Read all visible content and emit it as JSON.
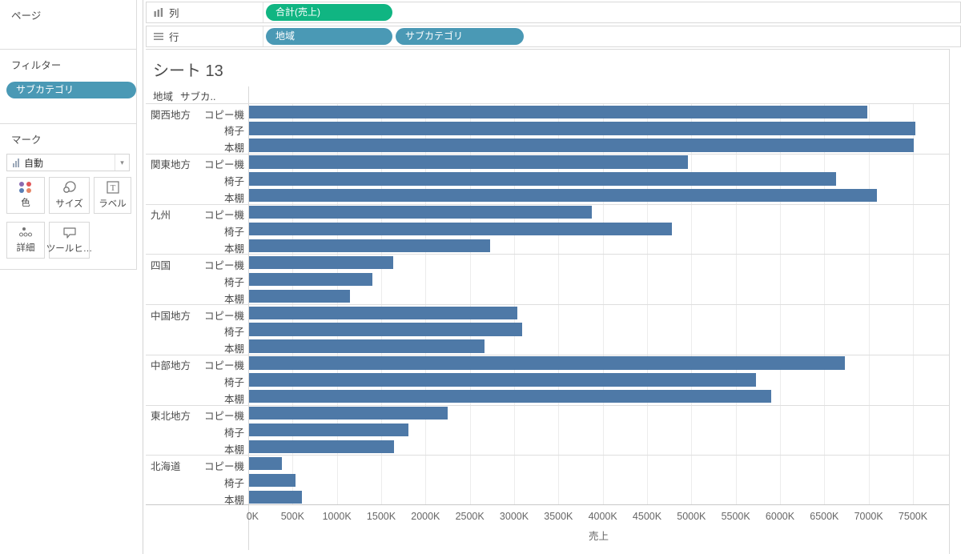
{
  "left_panel": {
    "pages_label": "ページ",
    "filters_label": "フィルター",
    "filter_pills": [
      {
        "label": "サブカテゴリ"
      }
    ],
    "marks": {
      "label": "マーク",
      "mark_type": "自動",
      "buttons": [
        {
          "label": "色"
        },
        {
          "label": "サイズ"
        },
        {
          "label": "ラベル"
        },
        {
          "label": "詳細"
        },
        {
          "label": "ツールヒ…"
        }
      ]
    }
  },
  "shelves": {
    "columns": {
      "label": "列",
      "pills": [
        {
          "label": "合計(売上)",
          "type": "measure"
        }
      ]
    },
    "rows": {
      "label": "行",
      "pills": [
        {
          "label": "地域",
          "type": "dimension"
        },
        {
          "label": "サブカテゴリ",
          "type": "dimension"
        }
      ]
    }
  },
  "sheet": {
    "title": "シート 13",
    "field_labels": {
      "region": "地域",
      "subcategory": "サブカ.."
    }
  },
  "chart_data": {
    "type": "bar",
    "orientation": "horizontal",
    "title": "シート 13",
    "xlabel": "売上",
    "x_unit": "K",
    "xlim_k": [
      0,
      7500
    ],
    "x_ticks": [
      "0K",
      "500K",
      "1000K",
      "1500K",
      "2000K",
      "2500K",
      "3000K",
      "3500K",
      "4000K",
      "4500K",
      "5000K",
      "5500K",
      "6000K",
      "6500K",
      "7000K",
      "7500K"
    ],
    "grid": true,
    "bar_color": "#4e79a7",
    "groups": [
      {
        "region": "関西地方",
        "rows": [
          {
            "label": "コピー機",
            "value_k": 6980
          },
          {
            "label": "椅子",
            "value_k": 7520
          },
          {
            "label": "本棚",
            "value_k": 7500
          }
        ]
      },
      {
        "region": "関東地方",
        "rows": [
          {
            "label": "コピー機",
            "value_k": 4950
          },
          {
            "label": "椅子",
            "value_k": 6620
          },
          {
            "label": "本棚",
            "value_k": 7080
          }
        ]
      },
      {
        "region": "九州",
        "rows": [
          {
            "label": "コピー機",
            "value_k": 3870
          },
          {
            "label": "椅子",
            "value_k": 4770
          },
          {
            "label": "本棚",
            "value_k": 2720
          }
        ]
      },
      {
        "region": "四国",
        "rows": [
          {
            "label": "コピー機",
            "value_k": 1630
          },
          {
            "label": "椅子",
            "value_k": 1390
          },
          {
            "label": "本棚",
            "value_k": 1140
          }
        ]
      },
      {
        "region": "中国地方",
        "rows": [
          {
            "label": "コピー機",
            "value_k": 3030
          },
          {
            "label": "椅子",
            "value_k": 3080
          },
          {
            "label": "本棚",
            "value_k": 2660
          }
        ]
      },
      {
        "region": "中部地方",
        "rows": [
          {
            "label": "コピー機",
            "value_k": 6720
          },
          {
            "label": "椅子",
            "value_k": 5720
          },
          {
            "label": "本棚",
            "value_k": 5890
          }
        ]
      },
      {
        "region": "東北地方",
        "rows": [
          {
            "label": "コピー機",
            "value_k": 2240
          },
          {
            "label": "椅子",
            "value_k": 1800
          },
          {
            "label": "本棚",
            "value_k": 1640
          }
        ]
      },
      {
        "region": "北海道",
        "rows": [
          {
            "label": "コピー機",
            "value_k": 370
          },
          {
            "label": "椅子",
            "value_k": 520
          },
          {
            "label": "本棚",
            "value_k": 600
          }
        ]
      }
    ]
  },
  "colors": {
    "bar": "#4e79a7",
    "measure_pill": "#10b582",
    "dimension_pill": "#4a99b5",
    "color_icon_dots": [
      "#8b6bb1",
      "#e15759",
      "#5a7fb5",
      "#e58667"
    ]
  },
  "icons": {
    "caret": "▾"
  }
}
